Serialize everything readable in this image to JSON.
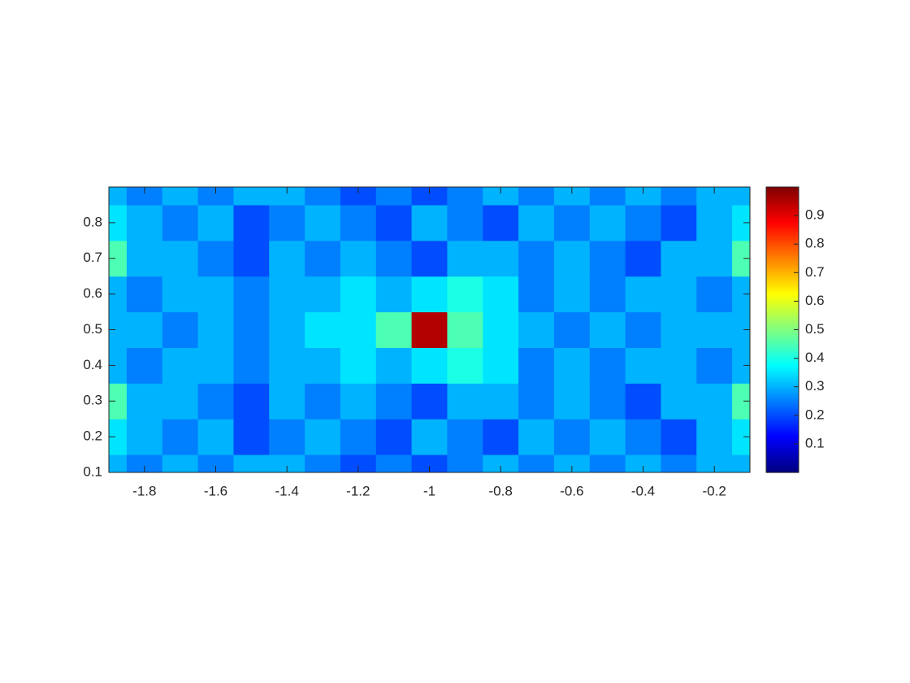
{
  "chart_data": {
    "type": "heatmap",
    "x": [
      -1.9,
      -1.8,
      -1.7,
      -1.6,
      -1.5,
      -1.4,
      -1.3,
      -1.2,
      -1.1,
      -1,
      -0.9,
      -0.8,
      -0.7,
      -0.6,
      -0.5,
      -0.4,
      -0.3,
      -0.2,
      -0.1
    ],
    "y": [
      0.1,
      0.2,
      0.3,
      0.4,
      0.5,
      0.6,
      0.7,
      0.8,
      0.9
    ],
    "z": [
      [
        0.3,
        0.25,
        0.3,
        0.25,
        0.3,
        0.3,
        0.25,
        0.2,
        0.25,
        0.2,
        0.25,
        0.3,
        0.25,
        0.3,
        0.25,
        0.3,
        0.25,
        0.3,
        0.3
      ],
      [
        0.35,
        0.3,
        0.25,
        0.3,
        0.2,
        0.25,
        0.3,
        0.25,
        0.2,
        0.3,
        0.25,
        0.2,
        0.3,
        0.25,
        0.3,
        0.25,
        0.2,
        0.3,
        0.35
      ],
      [
        0.45,
        0.3,
        0.3,
        0.25,
        0.2,
        0.3,
        0.25,
        0.3,
        0.25,
        0.2,
        0.3,
        0.3,
        0.25,
        0.3,
        0.25,
        0.2,
        0.3,
        0.3,
        0.45
      ],
      [
        0.3,
        0.25,
        0.3,
        0.3,
        0.25,
        0.3,
        0.3,
        0.35,
        0.3,
        0.35,
        0.4,
        0.35,
        0.25,
        0.3,
        0.25,
        0.3,
        0.3,
        0.25,
        0.3
      ],
      [
        0.3,
        0.3,
        0.25,
        0.3,
        0.25,
        0.3,
        0.35,
        0.35,
        0.45,
        0.95,
        0.45,
        0.35,
        0.3,
        0.25,
        0.3,
        0.25,
        0.3,
        0.3,
        0.3
      ],
      [
        0.3,
        0.25,
        0.3,
        0.3,
        0.25,
        0.3,
        0.3,
        0.35,
        0.3,
        0.35,
        0.4,
        0.35,
        0.25,
        0.3,
        0.25,
        0.3,
        0.3,
        0.25,
        0.3
      ],
      [
        0.45,
        0.3,
        0.3,
        0.25,
        0.2,
        0.3,
        0.25,
        0.3,
        0.25,
        0.2,
        0.3,
        0.3,
        0.25,
        0.3,
        0.25,
        0.2,
        0.3,
        0.3,
        0.45
      ],
      [
        0.35,
        0.3,
        0.25,
        0.3,
        0.2,
        0.25,
        0.3,
        0.25,
        0.2,
        0.3,
        0.25,
        0.2,
        0.3,
        0.25,
        0.3,
        0.25,
        0.2,
        0.3,
        0.35
      ],
      [
        0.3,
        0.25,
        0.3,
        0.25,
        0.3,
        0.3,
        0.25,
        0.2,
        0.25,
        0.2,
        0.25,
        0.3,
        0.25,
        0.3,
        0.25,
        0.3,
        0.25,
        0.3,
        0.3
      ]
    ],
    "colormap": "jet",
    "clim": [
      0,
      1
    ],
    "xlim": [
      -1.9,
      -0.1
    ],
    "ylim": [
      0.1,
      0.9
    ],
    "xticks": [
      -1.8,
      -1.6,
      -1.4,
      -1.2,
      -1,
      -0.8,
      -0.6,
      -0.4,
      -0.2
    ],
    "yticks": [
      0.1,
      0.2,
      0.3,
      0.4,
      0.5,
      0.6,
      0.7,
      0.8
    ],
    "colorbar_ticks": [
      0.1,
      0.2,
      0.3,
      0.4,
      0.5,
      0.6,
      0.7,
      0.8,
      0.9
    ]
  }
}
